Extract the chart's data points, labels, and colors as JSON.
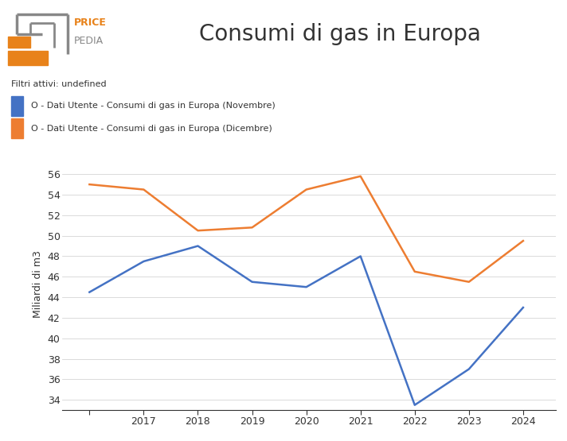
{
  "title": "Consumi di gas in Europa",
  "ylabel": "Miliardi di m3",
  "filter_text": "Filtri attivi: undefined",
  "legend_novembre": "O - Dati Utente - Consumi di gas in Europa (Novembre)",
  "legend_dicembre": "O - Dati Utente - Consumi di gas in Europa (Dicembre)",
  "novembre_x": [
    2016,
    2017,
    2018,
    2019,
    2020,
    2021,
    2022,
    2023,
    2024
  ],
  "novembre_y": [
    44.5,
    47.5,
    49.0,
    45.5,
    45.0,
    48.0,
    33.5,
    37.0,
    43.0
  ],
  "dicembre_x": [
    2016,
    2017,
    2018,
    2019,
    2020,
    2021,
    2022,
    2023,
    2024
  ],
  "dicembre_y": [
    55.0,
    54.5,
    50.5,
    50.8,
    54.5,
    55.8,
    46.5,
    45.5,
    49.5
  ],
  "color_novembre": "#4472c4",
  "color_dicembre": "#ed7d31",
  "color_orange_logo": "#e8821a",
  "color_gray_logo": "#888888",
  "ylim_min": 33,
  "ylim_max": 57.5,
  "yticks": [
    34,
    36,
    38,
    40,
    42,
    44,
    46,
    48,
    50,
    52,
    54,
    56
  ],
  "background_color": "#ffffff",
  "title_fontsize": 20,
  "label_fontsize": 9,
  "tick_fontsize": 9,
  "filter_fontsize": 8,
  "legend_fontsize": 8
}
